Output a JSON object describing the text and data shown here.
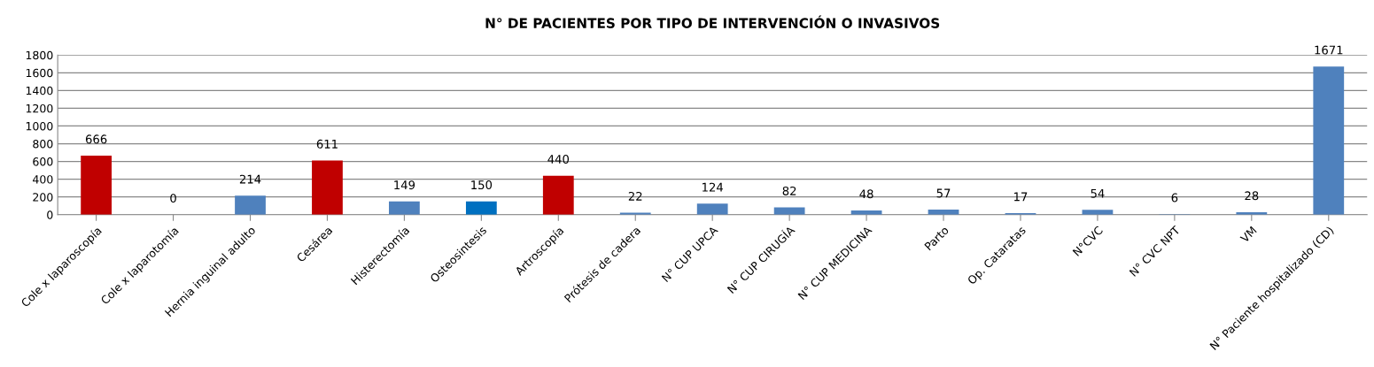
{
  "chart_data": {
    "type": "bar",
    "title": "N° DE PACIENTES POR TIPO DE INTERVENCIÓN O INVASIVOS",
    "categories": [
      "Cole x laparoscopía",
      "Cole x laparotomía",
      "Hernia inguinal adulto",
      "Cesárea",
      "Histerectomía",
      "Osteosintesis",
      "Artroscopía",
      "Prótesis de cadera",
      "N° CUP UPCA",
      "N° CUP CIRUGÍA",
      "N° CUP MEDICINA",
      "Parto",
      "Op. Cataratas",
      "N°CVC",
      "N° CVC NPT",
      "VM",
      "N° Paciente hospitalizado (CD)"
    ],
    "values": [
      666,
      0,
      214,
      611,
      149,
      150,
      440,
      22,
      124,
      82,
      48,
      57,
      17,
      54,
      6,
      28,
      1671
    ],
    "colors": [
      "#c00000",
      "#4f81bd",
      "#4f81bd",
      "#c00000",
      "#4f81bd",
      "#0070c0",
      "#c00000",
      "#4f81bd",
      "#4f81bd",
      "#4f81bd",
      "#4f81bd",
      "#4f81bd",
      "#4f81bd",
      "#4f81bd",
      "#4f81bd",
      "#4f81bd",
      "#4f81bd"
    ],
    "ylim": [
      0,
      1800
    ],
    "yticks": [
      0,
      200,
      400,
      600,
      800,
      1000,
      1200,
      1400,
      1600,
      1800
    ],
    "grid": "y",
    "data_labels": true,
    "legend": false
  }
}
